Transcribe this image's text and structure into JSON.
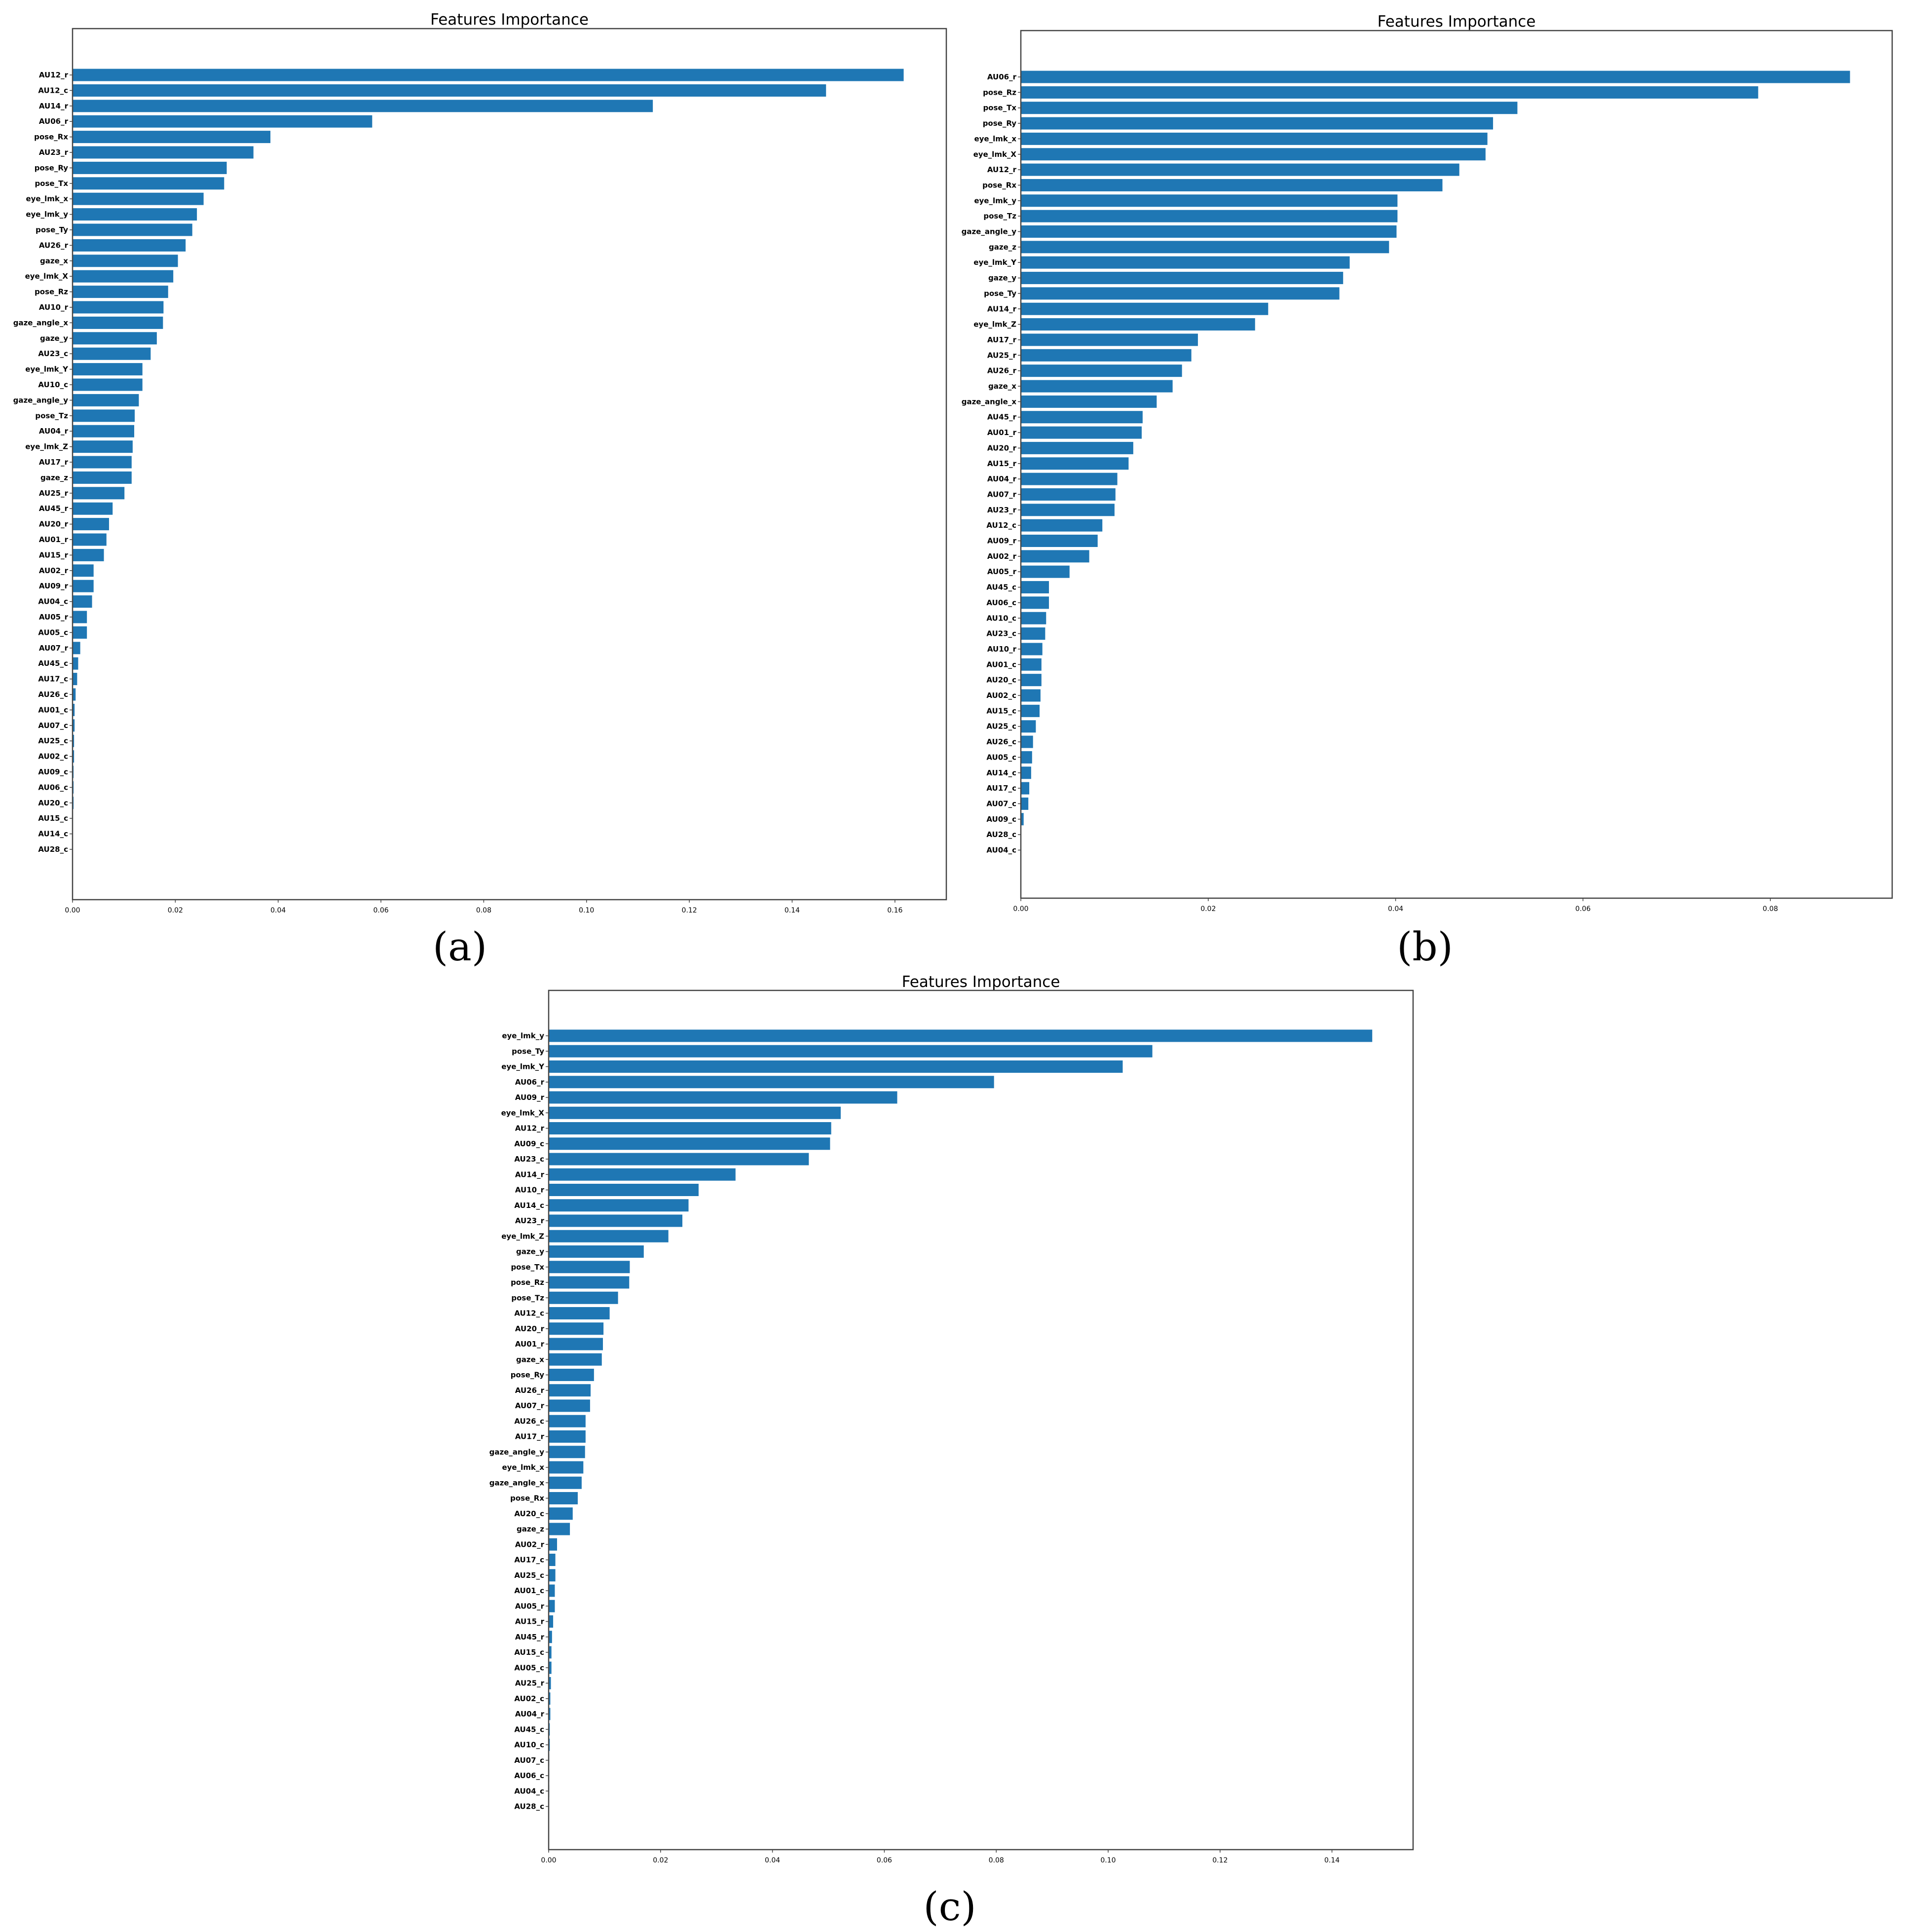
{
  "chart_data": [
    {
      "type": "bar",
      "orientation": "horizontal",
      "panel_label": "(a)",
      "title": "Features Importance",
      "xlabel": "",
      "ylabel": "",
      "xlim": [
        0,
        0.17
      ],
      "xticks": [
        "0.00",
        "0.02",
        "0.04",
        "0.06",
        "0.08",
        "0.10",
        "0.12",
        "0.14",
        "0.16"
      ],
      "categories": [
        "AU12_r",
        "AU12_c",
        "AU14_r",
        "AU06_r",
        "pose_Rx",
        "AU23_r",
        "pose_Ry",
        "pose_Tx",
        "eye_lmk_x",
        "eye_lmk_y",
        "pose_Ty",
        "AU26_r",
        "gaze_x",
        "eye_lmk_X",
        "pose_Rz",
        "AU10_r",
        "gaze_angle_x",
        "gaze_y",
        "AU23_c",
        "eye_lmk_Y",
        "AU10_c",
        "gaze_angle_y",
        "pose_Tz",
        "AU04_r",
        "eye_lmk_Z",
        "AU17_r",
        "gaze_z",
        "AU25_r",
        "AU45_r",
        "AU20_r",
        "AU01_r",
        "AU15_r",
        "AU02_r",
        "AU09_r",
        "AU04_c",
        "AU05_r",
        "AU05_c",
        "AU07_r",
        "AU45_c",
        "AU17_c",
        "AU26_c",
        "AU01_c",
        "AU07_c",
        "AU25_c",
        "AU02_c",
        "AU09_c",
        "AU06_c",
        "AU20_c",
        "AU15_c",
        "AU14_c",
        "AU28_c"
      ],
      "values": [
        0.1617,
        0.1466,
        0.1129,
        0.0583,
        0.0385,
        0.0352,
        0.03,
        0.0295,
        0.0255,
        0.0242,
        0.0233,
        0.022,
        0.0205,
        0.0196,
        0.0186,
        0.0177,
        0.0176,
        0.0164,
        0.0152,
        0.0136,
        0.0136,
        0.0129,
        0.0121,
        0.012,
        0.0117,
        0.0115,
        0.0115,
        0.0101,
        0.0078,
        0.0071,
        0.0066,
        0.0061,
        0.0041,
        0.0041,
        0.0038,
        0.0028,
        0.0028,
        0.0015,
        0.0011,
        0.0009,
        0.0006,
        0.0004,
        0.0004,
        0.0003,
        0.0003,
        0.0002,
        0.0002,
        0.0002,
        0.0001,
        0.0,
        0.0
      ]
    },
    {
      "type": "bar",
      "orientation": "horizontal",
      "panel_label": "(b)",
      "title": "Features Importance",
      "xlabel": "",
      "ylabel": "",
      "xlim": [
        0,
        0.093
      ],
      "xticks": [
        "0.00",
        "0.02",
        "0.04",
        "0.06",
        "0.08"
      ],
      "categories": [
        "AU06_r",
        "pose_Rz",
        "pose_Tx",
        "pose_Ry",
        "eye_lmk_x",
        "eye_lmk_X",
        "AU12_r",
        "pose_Rx",
        "eye_lmk_y",
        "pose_Tz",
        "gaze_angle_y",
        "gaze_z",
        "eye_lmk_Y",
        "gaze_y",
        "pose_Ty",
        "AU14_r",
        "eye_lmk_Z",
        "AU17_r",
        "AU25_r",
        "AU26_r",
        "gaze_x",
        "gaze_angle_x",
        "AU45_r",
        "AU01_r",
        "AU20_r",
        "AU15_r",
        "AU04_r",
        "AU07_r",
        "AU23_r",
        "AU12_c",
        "AU09_r",
        "AU02_r",
        "AU05_r",
        "AU45_c",
        "AU06_c",
        "AU10_c",
        "AU23_c",
        "AU10_r",
        "AU01_c",
        "AU20_c",
        "AU02_c",
        "AU15_c",
        "AU25_c",
        "AU26_c",
        "AU05_c",
        "AU14_c",
        "AU17_c",
        "AU07_c",
        "AU09_c",
        "AU28_c",
        "AU04_c"
      ],
      "values": [
        0.0885,
        0.0787,
        0.053,
        0.0504,
        0.0498,
        0.0496,
        0.0468,
        0.045,
        0.0402,
        0.0402,
        0.0401,
        0.0393,
        0.0351,
        0.0344,
        0.034,
        0.0264,
        0.025,
        0.0189,
        0.0182,
        0.0172,
        0.0162,
        0.0145,
        0.013,
        0.0129,
        0.012,
        0.0115,
        0.0103,
        0.0101,
        0.01,
        0.0087,
        0.0082,
        0.0073,
        0.0052,
        0.003,
        0.003,
        0.0027,
        0.0026,
        0.0023,
        0.0022,
        0.0022,
        0.0021,
        0.002,
        0.0016,
        0.0013,
        0.0012,
        0.0011,
        0.0009,
        0.0008,
        0.0003,
        0.0,
        0.0
      ]
    },
    {
      "type": "bar",
      "orientation": "horizontal",
      "panel_label": "(c)",
      "title": "Features Importance",
      "xlabel": "",
      "ylabel": "",
      "xlim": [
        0,
        0.1545
      ],
      "xticks": [
        "0.00",
        "0.02",
        "0.04",
        "0.06",
        "0.08",
        "0.10",
        "0.12",
        "0.14"
      ],
      "categories": [
        "eye_lmk_y",
        "pose_Ty",
        "eye_lmk_Y",
        "AU06_r",
        "AU09_r",
        "eye_lmk_X",
        "AU12_r",
        "AU09_c",
        "AU23_c",
        "AU14_r",
        "AU10_r",
        "AU14_c",
        "AU23_r",
        "eye_lmk_Z",
        "gaze_y",
        "pose_Tx",
        "pose_Rz",
        "pose_Tz",
        "AU12_c",
        "AU20_r",
        "AU01_r",
        "gaze_x",
        "pose_Ry",
        "AU26_r",
        "AU07_r",
        "AU26_c",
        "AU17_r",
        "gaze_angle_y",
        "eye_lmk_x",
        "gaze_angle_x",
        "pose_Rx",
        "AU20_c",
        "gaze_z",
        "AU02_r",
        "AU17_c",
        "AU25_c",
        "AU01_c",
        "AU05_r",
        "AU15_r",
        "AU45_r",
        "AU15_c",
        "AU05_c",
        "AU25_r",
        "AU02_c",
        "AU04_r",
        "AU45_c",
        "AU10_c",
        "AU07_c",
        "AU06_c",
        "AU04_c",
        "AU28_c"
      ],
      "values": [
        0.1472,
        0.1079,
        0.1026,
        0.0796,
        0.0623,
        0.0522,
        0.0505,
        0.0503,
        0.0465,
        0.0334,
        0.0268,
        0.025,
        0.0239,
        0.0214,
        0.017,
        0.0145,
        0.0144,
        0.0124,
        0.0109,
        0.0098,
        0.0097,
        0.0095,
        0.0081,
        0.0075,
        0.0074,
        0.0066,
        0.0066,
        0.0065,
        0.0062,
        0.0059,
        0.0052,
        0.0043,
        0.0038,
        0.0015,
        0.0012,
        0.0012,
        0.0011,
        0.0011,
        0.0008,
        0.0006,
        0.0005,
        0.0005,
        0.0004,
        0.0003,
        0.0003,
        0.0002,
        0.0002,
        0.0001,
        0.0001,
        0.0001,
        0.0
      ]
    }
  ]
}
